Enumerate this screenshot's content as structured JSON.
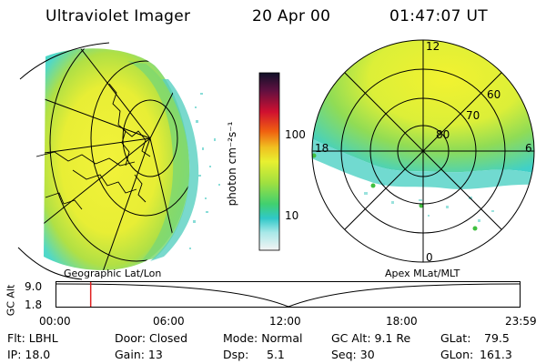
{
  "header": {
    "title": "Ultraviolet Imager",
    "date": "20 Apr 00",
    "time": "01:47:07 UT"
  },
  "panels": {
    "left_label": "Geographic Lat/Lon",
    "right_label": "Apex MLat/MLT"
  },
  "colorbar": {
    "unit_label": "photon cm⁻²s⁻¹",
    "ticks": [
      "100",
      "10"
    ]
  },
  "polar_plot": {
    "mlt_labels": [
      "12",
      "18",
      "6",
      "0"
    ],
    "lat_labels": [
      "60",
      "70",
      "80"
    ]
  },
  "timeline": {
    "axis_label": "GC Alt",
    "y_ticks": [
      "9.0",
      "1.8"
    ],
    "x_ticks": [
      "00:00",
      "06:00",
      "12:00",
      "18:00",
      "23:59"
    ],
    "current_time_fraction": 0.074
  },
  "status": {
    "row1": [
      {
        "key": "flt",
        "text": "Flt: LBHL"
      },
      {
        "key": "door",
        "text": "Door: Closed"
      },
      {
        "key": "mode",
        "text": "Mode: Normal"
      },
      {
        "key": "gcalt",
        "text": "GC Alt: 9.1 Re"
      },
      {
        "key": "glat_label",
        "text": "GLat:"
      },
      {
        "key": "glat_value",
        "text": "79.5"
      }
    ],
    "row2": [
      {
        "key": "ip",
        "text": "IP: 18.0"
      },
      {
        "key": "gain",
        "text": "Gain: 13"
      },
      {
        "key": "dsp_label",
        "text": "Dsp:"
      },
      {
        "key": "dsp_value",
        "text": "5.1"
      },
      {
        "key": "seq",
        "text": "Seq: 30"
      },
      {
        "key": "glon_label",
        "text": "GLon:"
      },
      {
        "key": "glon_value",
        "text": "161.3"
      }
    ]
  },
  "colors": {
    "aurora_yellow": "#f0f030",
    "aurora_green": "#a8e040",
    "aurora_cyan": "#40d8d0",
    "marker": "#e02020"
  }
}
